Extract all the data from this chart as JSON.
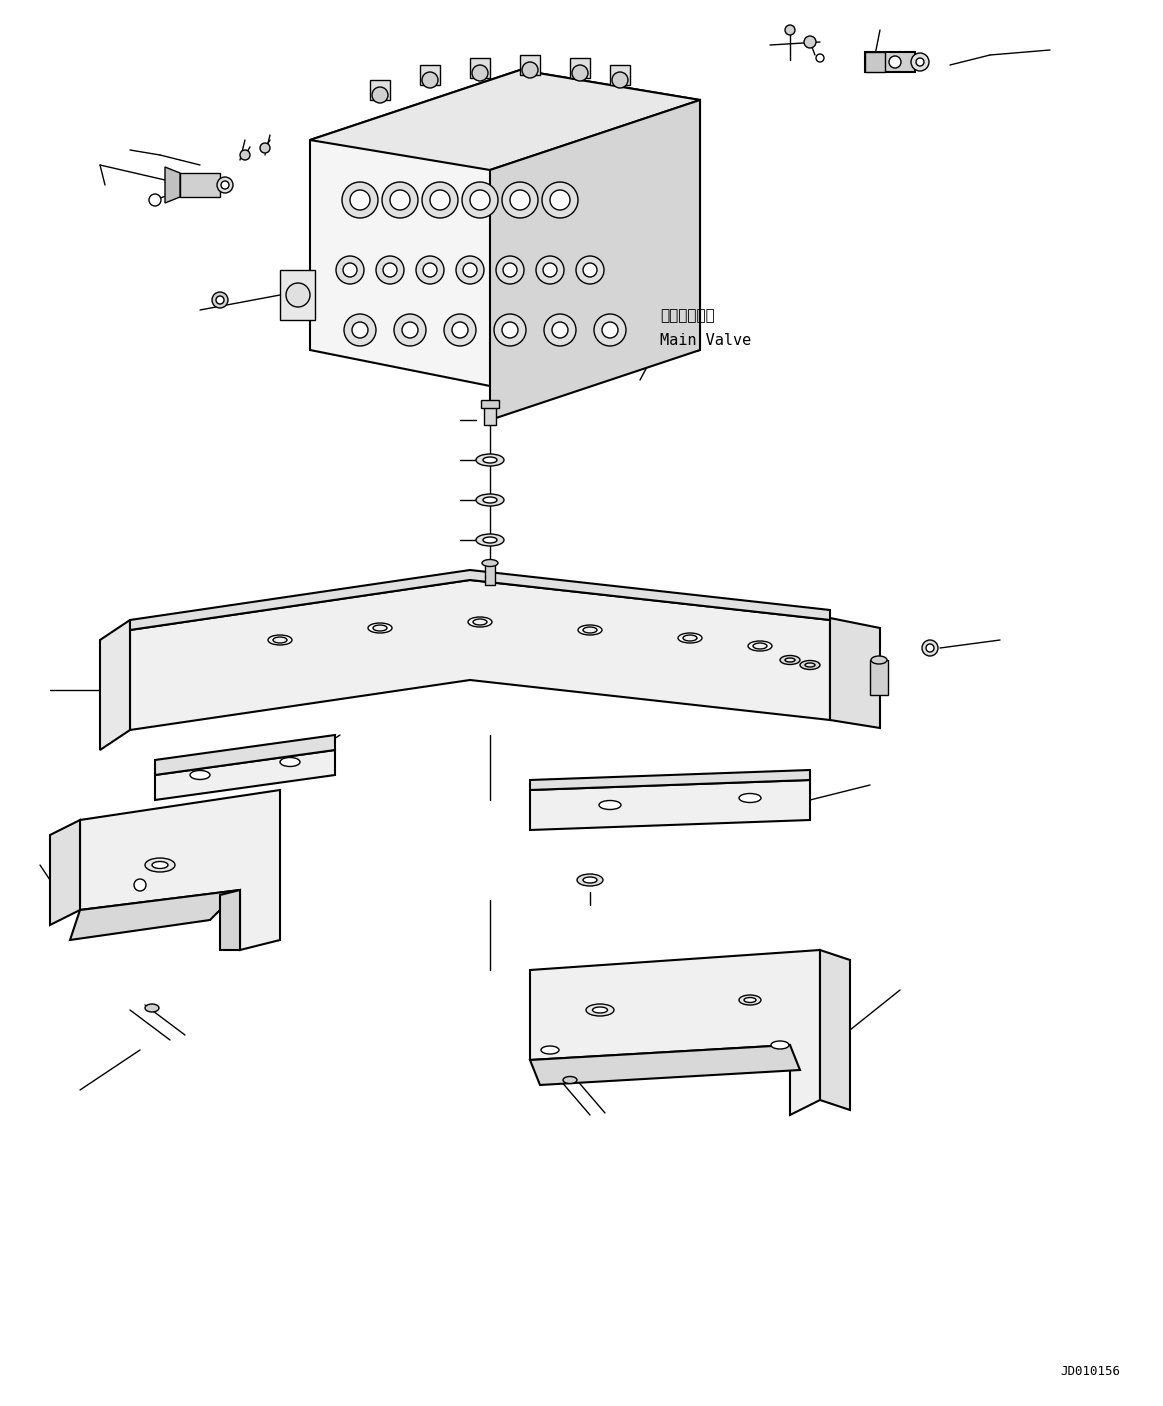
{
  "bg_color": "#ffffff",
  "line_color": "#000000",
  "fig_width": 11.63,
  "fig_height": 14.06,
  "dpi": 100,
  "watermark": "JD010156",
  "label_main_valve_ja": "メインバルブ",
  "label_main_valve_en": "Main Valve"
}
